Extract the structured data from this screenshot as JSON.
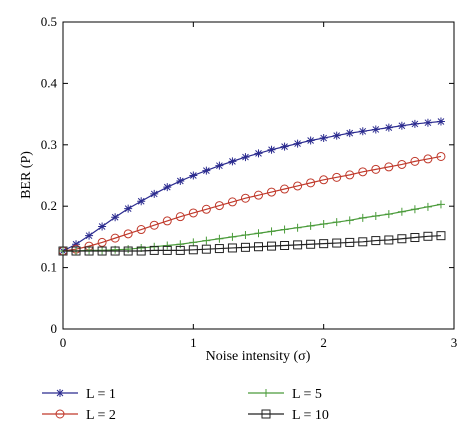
{
  "chart_data": {
    "type": "line",
    "xlabel": "Noise intensity (σ)",
    "ylabel": "BER (P)",
    "xlim": [
      0,
      3
    ],
    "ylim": [
      0,
      0.5
    ],
    "xticks": [
      0,
      1,
      2,
      3
    ],
    "yticks": [
      0,
      0.1,
      0.2,
      0.3,
      0.4,
      0.5
    ],
    "xtick_labels": [
      "0",
      "1",
      "2",
      "3"
    ],
    "ytick_labels": [
      "0",
      "0.1",
      "0.2",
      "0.3",
      "0.4",
      "0.5"
    ],
    "grid": false,
    "legend_position": "below",
    "x": [
      0,
      0.1,
      0.2,
      0.3,
      0.4,
      0.5,
      0.6,
      0.7,
      0.8,
      0.9,
      1.0,
      1.1,
      1.2,
      1.3,
      1.4,
      1.5,
      1.6,
      1.7,
      1.8,
      1.9,
      2.0,
      2.1,
      2.2,
      2.3,
      2.4,
      2.5,
      2.6,
      2.7,
      2.8,
      2.9
    ],
    "series": [
      {
        "name": "L = 1",
        "color": "#2b2b8f",
        "marker": "star",
        "values": [
          0.127,
          0.138,
          0.152,
          0.167,
          0.182,
          0.196,
          0.208,
          0.22,
          0.231,
          0.241,
          0.25,
          0.258,
          0.266,
          0.273,
          0.28,
          0.286,
          0.292,
          0.297,
          0.302,
          0.307,
          0.311,
          0.315,
          0.319,
          0.322,
          0.325,
          0.328,
          0.331,
          0.334,
          0.336,
          0.338
        ]
      },
      {
        "name": "L = 2",
        "color": "#c0392b",
        "marker": "circle",
        "values": [
          0.127,
          0.13,
          0.135,
          0.141,
          0.148,
          0.155,
          0.162,
          0.169,
          0.176,
          0.183,
          0.189,
          0.195,
          0.201,
          0.207,
          0.213,
          0.218,
          0.223,
          0.228,
          0.233,
          0.238,
          0.243,
          0.247,
          0.251,
          0.256,
          0.26,
          0.264,
          0.268,
          0.273,
          0.277,
          0.281
        ]
      },
      {
        "name": "L = 5",
        "color": "#4a9b3a",
        "marker": "plus",
        "values": [
          0.127,
          0.127,
          0.128,
          0.128,
          0.129,
          0.13,
          0.132,
          0.134,
          0.136,
          0.138,
          0.141,
          0.144,
          0.147,
          0.15,
          0.153,
          0.156,
          0.159,
          0.162,
          0.165,
          0.168,
          0.171,
          0.174,
          0.177,
          0.181,
          0.184,
          0.187,
          0.191,
          0.195,
          0.199,
          0.203
        ]
      },
      {
        "name": "L = 10",
        "color": "#222222",
        "marker": "square",
        "values": [
          0.127,
          0.127,
          0.127,
          0.127,
          0.127,
          0.127,
          0.127,
          0.128,
          0.128,
          0.128,
          0.129,
          0.13,
          0.131,
          0.132,
          0.133,
          0.134,
          0.135,
          0.136,
          0.137,
          0.138,
          0.139,
          0.14,
          0.141,
          0.142,
          0.144,
          0.145,
          0.147,
          0.149,
          0.151,
          0.152
        ]
      }
    ]
  }
}
